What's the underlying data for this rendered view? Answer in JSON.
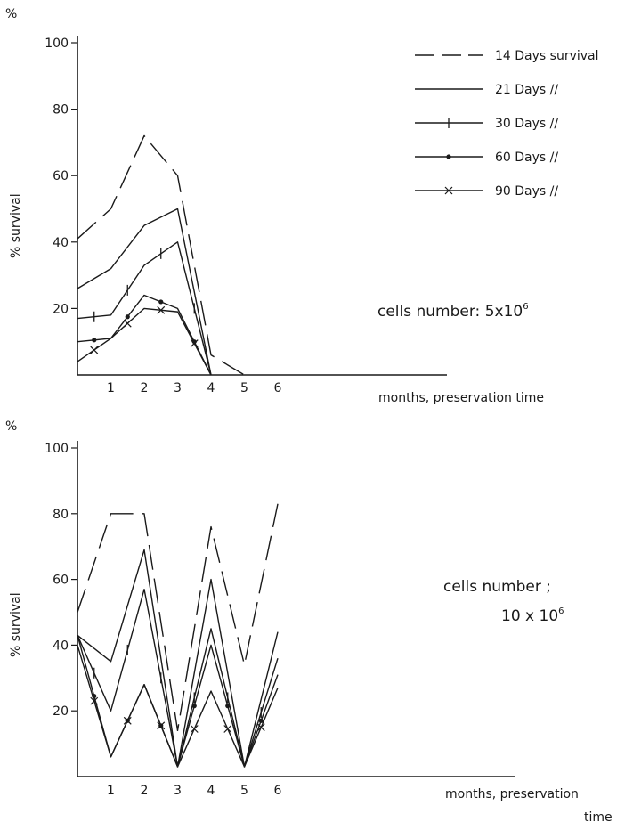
{
  "chart_data": [
    {
      "type": "line",
      "ylabel_unit": "%",
      "ylabel": "% survival",
      "xlabel": "months, preservation time",
      "annotation": "cells number: 5x10",
      "annotation_sup": "6",
      "x_ticks": [
        "1",
        "2",
        "3",
        "4",
        "5",
        "6"
      ],
      "y_ticks": [
        "100",
        "80",
        "60",
        "40",
        "20"
      ],
      "xlim": [
        0,
        10
      ],
      "ylim": [
        0,
        100
      ],
      "legend": [
        {
          "marker": "none",
          "dash": true,
          "label": "14 Days survival"
        },
        {
          "marker": "none",
          "dash": false,
          "label": "21 Days  //"
        },
        {
          "marker": "bar",
          "dash": false,
          "label": "30 Days  //"
        },
        {
          "marker": "dot",
          "dash": false,
          "label": "60 Days  //"
        },
        {
          "marker": "x",
          "dash": false,
          "label": "90 Days  //"
        }
      ],
      "series": [
        {
          "dash": true,
          "marker": "none",
          "points": [
            [
              0,
              41
            ],
            [
              1,
              50
            ],
            [
              2,
              72
            ],
            [
              3,
              60
            ],
            [
              4,
              6
            ],
            [
              5,
              0
            ]
          ]
        },
        {
          "dash": false,
          "marker": "none",
          "points": [
            [
              0,
              26
            ],
            [
              1,
              32
            ],
            [
              2,
              45
            ],
            [
              3,
              50
            ],
            [
              4,
              0
            ]
          ]
        },
        {
          "dash": false,
          "marker": "bar",
          "points": [
            [
              0,
              17
            ],
            [
              1,
              18
            ],
            [
              2,
              33
            ],
            [
              3,
              40
            ],
            [
              4,
              0
            ]
          ]
        },
        {
          "dash": false,
          "marker": "dot",
          "points": [
            [
              0,
              10
            ],
            [
              1,
              11
            ],
            [
              2,
              24
            ],
            [
              3,
              20
            ],
            [
              4,
              0
            ]
          ]
        },
        {
          "dash": false,
          "marker": "x",
          "points": [
            [
              0,
              4
            ],
            [
              1,
              11
            ],
            [
              2,
              20
            ],
            [
              3,
              19
            ],
            [
              4,
              0
            ]
          ]
        }
      ]
    },
    {
      "type": "line",
      "ylabel_unit": "%",
      "ylabel": "% survival",
      "xlabel": "months, preservation",
      "xlabel2": "time",
      "annotation": "cells number ;",
      "annotation2": "10 x 10",
      "annotation_sup": "6",
      "x_ticks": [
        "1",
        "2",
        "3",
        "4",
        "5",
        "6"
      ],
      "y_ticks": [
        "100",
        "80",
        "60",
        "40",
        "20"
      ],
      "xlim": [
        0,
        12
      ],
      "ylim": [
        0,
        100
      ],
      "series": [
        {
          "dash": true,
          "marker": "none",
          "points": [
            [
              0,
              50
            ],
            [
              1,
              80
            ],
            [
              2,
              80
            ],
            [
              3,
              14
            ],
            [
              4,
              76
            ],
            [
              5,
              34
            ],
            [
              6,
              83
            ]
          ]
        },
        {
          "dash": false,
          "marker": "none",
          "points": [
            [
              0,
              43
            ],
            [
              1,
              35
            ],
            [
              2,
              69
            ],
            [
              3,
              3
            ],
            [
              4,
              60
            ],
            [
              5,
              3
            ],
            [
              6,
              44
            ]
          ]
        },
        {
          "dash": false,
          "marker": "bar",
          "points": [
            [
              0,
              43
            ],
            [
              1,
              20
            ],
            [
              2,
              57
            ],
            [
              3,
              3
            ],
            [
              4,
              45
            ],
            [
              5,
              3
            ],
            [
              6,
              36
            ]
          ]
        },
        {
          "dash": false,
          "marker": "dot",
          "points": [
            [
              0,
              43
            ],
            [
              1,
              6
            ],
            [
              2,
              28
            ],
            [
              3,
              3
            ],
            [
              4,
              40
            ],
            [
              5,
              3
            ],
            [
              6,
              31
            ]
          ]
        },
        {
          "dash": false,
          "marker": "x",
          "points": [
            [
              0,
              40
            ],
            [
              1,
              6
            ],
            [
              2,
              28
            ],
            [
              3,
              3
            ],
            [
              4,
              26
            ],
            [
              5,
              3
            ],
            [
              6,
              27
            ]
          ]
        }
      ]
    }
  ]
}
